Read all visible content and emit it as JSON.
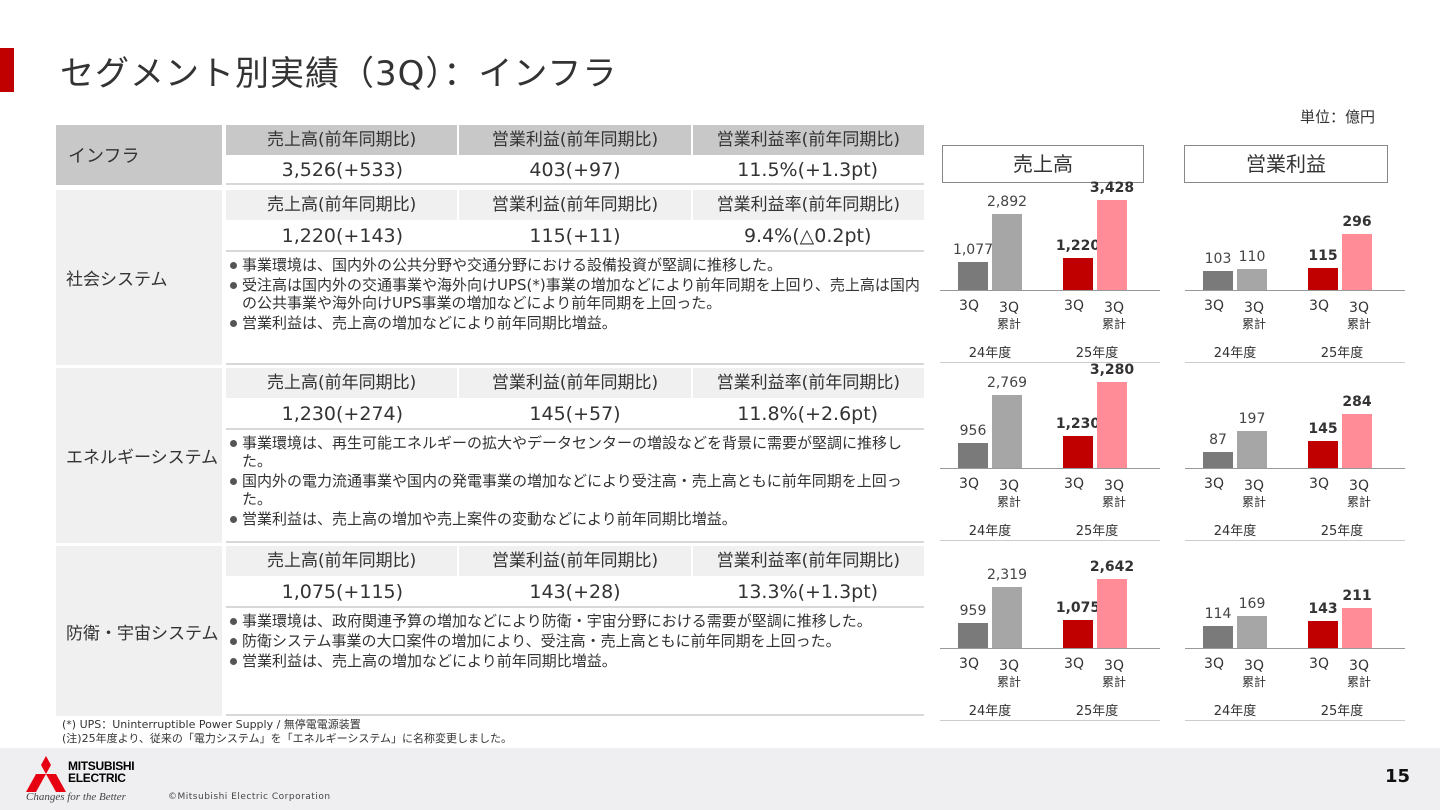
{
  "page_title": "セグメント別実績（3Q）：インフラ",
  "unit": "単位：億円",
  "summary": {
    "segment": "インフラ",
    "headers": [
      "売上高(前年同期比)",
      "営業利益(前年同期比)",
      "営業利益率(前年同期比)"
    ],
    "values": [
      "3,526(+533)",
      "403(+97)",
      "11.5%(+1.3pt)"
    ]
  },
  "chart_headers": {
    "sales": "売上高",
    "profit": "営業利益"
  },
  "segments": [
    {
      "name": "社会システム",
      "headers": [
        "売上高(前年同期比)",
        "営業利益(前年同期比)",
        "営業利益率(前年同期比)"
      ],
      "values": [
        "1,220(+143)",
        "115(+11)",
        "9.4%(△0.2pt)"
      ],
      "bullets": [
        "事業環境は、国内外の公共分野や交通分野における設備投資が堅調に推移した。",
        "受注高は国内外の交通事業や海外向けUPS(*)事業の増加などにより前年同期を上回り、売上高は国内の公共事業や海外向けUPS事業の増加などにより前年同期を上回った。",
        "営業利益は、売上高の増加などにより前年同期比増益。"
      ]
    },
    {
      "name": "エネルギーシステム",
      "headers": [
        "売上高(前年同期比)",
        "営業利益(前年同期比)",
        "営業利益率(前年同期比)"
      ],
      "values": [
        "1,230(+274)",
        "145(+57)",
        "11.8%(+2.6pt)"
      ],
      "bullets": [
        "事業環境は、再生可能エネルギーの拡大やデータセンターの増設などを背景に需要が堅調に推移した。",
        "国内外の電力流通事業や国内の発電事業の増加などにより受注高・売上高ともに前年同期を上回った。",
        "営業利益は、売上高の増加や売上案件の変動などにより前年同期比増益。"
      ]
    },
    {
      "name": "防衛・宇宙システム",
      "headers": [
        "売上高(前年同期比)",
        "営業利益(前年同期比)",
        "営業利益率(前年同期比)"
      ],
      "values": [
        "1,075(+115)",
        "143(+28)",
        "13.3%(+1.3pt)"
      ],
      "bullets": [
        "事業環境は、政府関連予算の増加などにより防衛・宇宙分野における需要が堅調に推移した。",
        "防衛システム事業の大口案件の増加により、受注高・売上高ともに前年同期を上回った。",
        "営業利益は、売上高の増加などにより前年同期比増益。"
      ]
    }
  ],
  "axis": {
    "q": "3Q",
    "cum_top": "3Q",
    "cum_bottom": "累計",
    "fy24": "24年度",
    "fy25": "25年度"
  },
  "chart_data": [
    {
      "type": "bar",
      "title": "社会システム 売上高",
      "categories": [
        "24年度 3Q",
        "24年度 3Q累計",
        "25年度 3Q",
        "25年度 3Q累計"
      ],
      "values": [
        1077,
        2892,
        1220,
        3428
      ],
      "labels": [
        "1,077",
        "2,892",
        "1,220",
        "3,428"
      ]
    },
    {
      "type": "bar",
      "title": "社会システム 営業利益",
      "categories": [
        "24年度 3Q",
        "24年度 3Q累計",
        "25年度 3Q",
        "25年度 3Q累計"
      ],
      "values": [
        103,
        110,
        115,
        296
      ],
      "labels": [
        "103",
        "110",
        "115",
        "296"
      ]
    },
    {
      "type": "bar",
      "title": "エネルギーシステム 売上高",
      "categories": [
        "24年度 3Q",
        "24年度 3Q累計",
        "25年度 3Q",
        "25年度 3Q累計"
      ],
      "values": [
        956,
        2769,
        1230,
        3280
      ],
      "labels": [
        "956",
        "2,769",
        "1,230",
        "3,280"
      ]
    },
    {
      "type": "bar",
      "title": "エネルギーシステム 営業利益",
      "categories": [
        "24年度 3Q",
        "24年度 3Q累計",
        "25年度 3Q",
        "25年度 3Q累計"
      ],
      "values": [
        87,
        197,
        145,
        284
      ],
      "labels": [
        "87",
        "197",
        "145",
        "284"
      ]
    },
    {
      "type": "bar",
      "title": "防衛・宇宙システム 売上高",
      "categories": [
        "24年度 3Q",
        "24年度 3Q累計",
        "25年度 3Q",
        "25年度 3Q累計"
      ],
      "values": [
        959,
        2319,
        1075,
        2642
      ],
      "labels": [
        "959",
        "2,319",
        "1,075",
        "2,642"
      ]
    },
    {
      "type": "bar",
      "title": "防衛・宇宙システム 営業利益",
      "categories": [
        "24年度 3Q",
        "24年度 3Q累計",
        "25年度 3Q",
        "25年度 3Q累計"
      ],
      "values": [
        114,
        169,
        143,
        211
      ],
      "labels": [
        "114",
        "169",
        "143",
        "211"
      ]
    }
  ],
  "colors": {
    "fy24_q": "#7a7a7a",
    "fy24_cum": "#a6a6a6",
    "fy25_q": "#c00000",
    "fy25_cum": "#ff8c96",
    "accent": "#c00000"
  },
  "footnotes": [
    "(*) UPS：Uninterruptible Power Supply / 無停電電源装置",
    "(注)25年度より、従来の「電力システム」を「エネルギーシステム」に名称変更しました。"
  ],
  "footer": {
    "logo_line1": "MITSUBISHI",
    "logo_line2": "ELECTRIC",
    "tagline": "Changes for the Better",
    "copyright": "©Mitsubishi Electric Corporation",
    "page_number": "15"
  }
}
